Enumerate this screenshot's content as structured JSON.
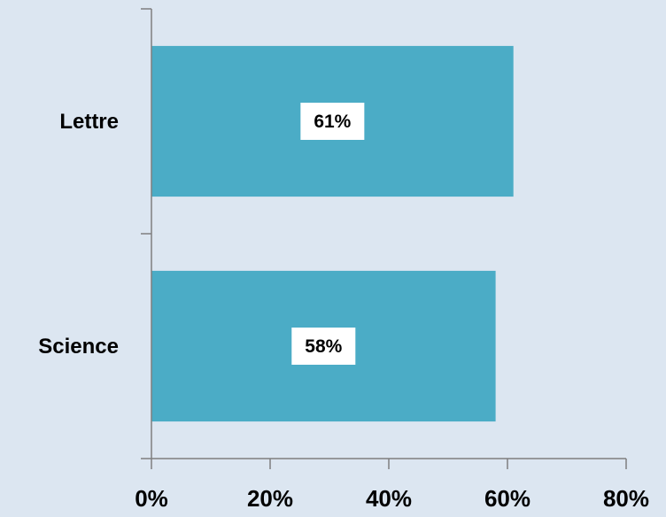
{
  "chart_data": {
    "type": "bar",
    "orientation": "horizontal",
    "categories": [
      "Lettre",
      "Science"
    ],
    "values": [
      61,
      58
    ],
    "data_labels": [
      "61%",
      "58%"
    ],
    "title": "",
    "xlabel": "",
    "ylabel": "",
    "xlim": [
      0,
      80
    ],
    "x_ticks": [
      0,
      20,
      40,
      60,
      80
    ],
    "x_tick_labels": [
      "0%",
      "20%",
      "40%",
      "60%",
      "80%"
    ],
    "grid": false,
    "legend": "none",
    "colors": {
      "bar": "#4bacc6",
      "background": "#dce6f1",
      "axis": "#7f7f7f",
      "label_box": "#ffffff"
    }
  }
}
